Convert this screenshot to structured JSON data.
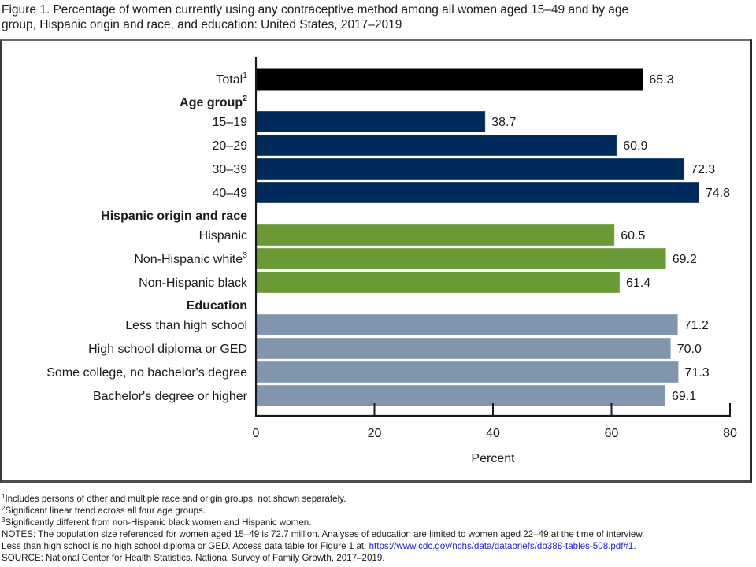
{
  "figure": {
    "title_line1": "Figure 1. Percentage of women currently using any contraceptive method among all women aged 15–49 and by age",
    "title_line2": "group, Hispanic origin and race, and education: United States, 2017–2019"
  },
  "chart_data": {
    "type": "bar",
    "orientation": "horizontal",
    "title": "Percentage of women currently using any contraceptive method among all women aged 15–49 and by age group, Hispanic origin and race, and education: United States, 2017–2019",
    "xlabel": "Percent",
    "ylabel": "",
    "xlim": [
      0,
      80
    ],
    "xticks": [
      0,
      20,
      40,
      60,
      80
    ],
    "grid": false,
    "legend": "none",
    "colors": {
      "total": "#000000",
      "age": "#002a5c",
      "race": "#6a9a35",
      "education": "#8295ae"
    },
    "rows": [
      {
        "kind": "bar",
        "label": "Total",
        "sup": "1",
        "value": 65.3,
        "value_label": "65.3",
        "group": "total"
      },
      {
        "kind": "header",
        "label": "Age group",
        "sup": "2"
      },
      {
        "kind": "bar",
        "label": "15–19",
        "sup": "",
        "value": 38.7,
        "value_label": "38.7",
        "group": "age"
      },
      {
        "kind": "bar",
        "label": "20–29",
        "sup": "",
        "value": 60.9,
        "value_label": "60.9",
        "group": "age"
      },
      {
        "kind": "bar",
        "label": "30–39",
        "sup": "",
        "value": 72.3,
        "value_label": "72.3",
        "group": "age"
      },
      {
        "kind": "bar",
        "label": "40–49",
        "sup": "",
        "value": 74.8,
        "value_label": "74.8",
        "group": "age"
      },
      {
        "kind": "header",
        "label": "Hispanic origin and race",
        "sup": ""
      },
      {
        "kind": "bar",
        "label": "Hispanic",
        "sup": "",
        "value": 60.5,
        "value_label": "60.5",
        "group": "race"
      },
      {
        "kind": "bar",
        "label": "Non-Hispanic white",
        "sup": "3",
        "value": 69.2,
        "value_label": "69.2",
        "group": "race"
      },
      {
        "kind": "bar",
        "label": "Non-Hispanic black",
        "sup": "",
        "value": 61.4,
        "value_label": "61.4",
        "group": "race"
      },
      {
        "kind": "header",
        "label": "Education",
        "sup": ""
      },
      {
        "kind": "bar",
        "label": "Less than high school",
        "sup": "",
        "value": 71.2,
        "value_label": "71.2",
        "group": "education"
      },
      {
        "kind": "bar",
        "label": "High school diploma or GED",
        "sup": "",
        "value": 70.0,
        "value_label": "70.0",
        "group": "education"
      },
      {
        "kind": "bar",
        "label": "Some college, no bachelor's degree",
        "sup": "",
        "value": 71.3,
        "value_label": "71.3",
        "group": "education"
      },
      {
        "kind": "bar",
        "label": "Bachelor's degree or higher",
        "sup": "",
        "value": 69.1,
        "value_label": "69.1",
        "group": "education"
      }
    ]
  },
  "notes": {
    "footnote1": {
      "sup": "1",
      "text": "Includes persons of other and multiple race and origin groups, not shown separately."
    },
    "footnote2": {
      "sup": "2",
      "text": "Significant linear trend across all four age groups."
    },
    "footnote3": {
      "sup": "3",
      "text": "Significantly different from non-Hispanic black women and Hispanic women."
    },
    "notes_line1": "NOTES: The population size referenced for women aged 15–49 is 72.7 million. Analyses of education are limited to women aged 22–49 at the time of interview.",
    "notes_line2_prefix": "Less than high school is no high school diploma or GED. Access data table for Figure 1 at: ",
    "notes_link": "https://www.cdc.gov/nchs/data/databriefs/db388-tables-508.pdf#1",
    "notes_line2_suffix": ".",
    "source": "SOURCE: National Center for Health Statistics, National Survey of Family Growth, 2017–2019."
  }
}
